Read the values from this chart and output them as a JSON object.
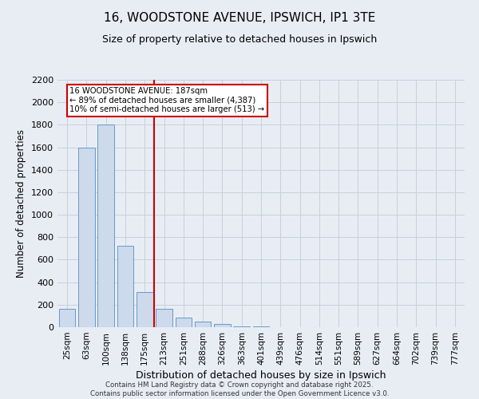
{
  "title_line1": "16, WOODSTONE AVENUE, IPSWICH, IP1 3TE",
  "title_line2": "Size of property relative to detached houses in Ipswich",
  "xlabel": "Distribution of detached houses by size in Ipswich",
  "ylabel": "Number of detached properties",
  "categories": [
    "25sqm",
    "63sqm",
    "100sqm",
    "138sqm",
    "175sqm",
    "213sqm",
    "251sqm",
    "288sqm",
    "326sqm",
    "363sqm",
    "401sqm",
    "439sqm",
    "476sqm",
    "514sqm",
    "551sqm",
    "589sqm",
    "627sqm",
    "664sqm",
    "702sqm",
    "739sqm",
    "777sqm"
  ],
  "values": [
    160,
    1600,
    1800,
    725,
    310,
    160,
    85,
    50,
    25,
    10,
    5,
    3,
    1,
    0,
    0,
    0,
    0,
    0,
    0,
    0,
    0
  ],
  "bar_color": "#ccdaeb",
  "bar_edge_color": "#6699cc",
  "red_line_x": 4.5,
  "annotation_line1": "16 WOODSTONE AVENUE: 187sqm",
  "annotation_line2": "← 89% of detached houses are smaller (4,387)",
  "annotation_line3": "10% of semi-detached houses are larger (513) →",
  "annotation_box_edgecolor": "#cc0000",
  "ylim": [
    0,
    2200
  ],
  "yticks": [
    0,
    200,
    400,
    600,
    800,
    1000,
    1200,
    1400,
    1600,
    1800,
    2000,
    2200
  ],
  "background_color": "#e8edf4",
  "grid_color": "#c8d0dc",
  "axes_bg_color": "#e8edf4",
  "footer_line1": "Contains HM Land Registry data © Crown copyright and database right 2025.",
  "footer_line2": "Contains public sector information licensed under the Open Government Licence v3.0."
}
